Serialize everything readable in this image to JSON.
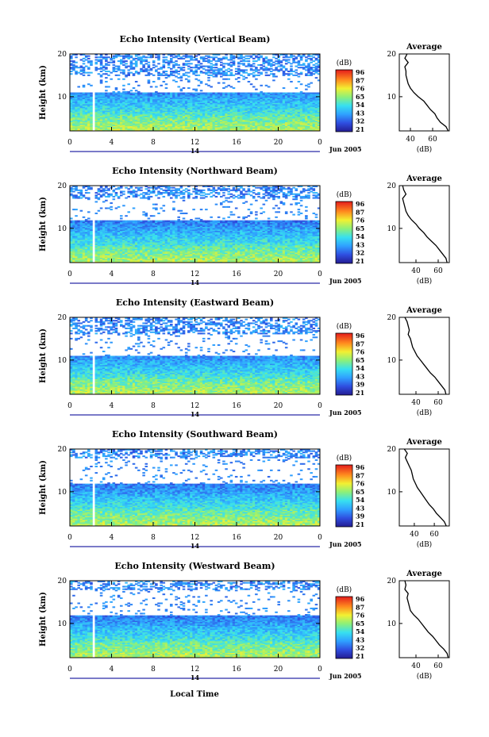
{
  "figure": {
    "xlabel": "Local Time",
    "date_label": "Jun 2005",
    "colorbar_label": "(dB)",
    "avg_title": "Average",
    "avg_xlabel": "(dB)"
  },
  "chart_data": [
    {
      "type": "heatmap",
      "title": "Echo Intensity (Vertical Beam)",
      "ylabel": "Height (km)",
      "xlabel": "",
      "x_ticks": [
        "0",
        "4",
        "8",
        "12",
        "16",
        "20",
        "0"
      ],
      "day_label": "14",
      "xlim": [
        0,
        24
      ],
      "ylim": [
        2,
        20
      ],
      "y_ticks": [
        "20",
        "10"
      ],
      "colorbar": {
        "ticks": [
          "96",
          "87",
          "76",
          "65",
          "54",
          "43",
          "32",
          "21"
        ],
        "range": [
          21,
          96
        ]
      },
      "profile_ycuts": {
        "upper_km": 15,
        "middle_km": 11,
        "lower_km": 6
      },
      "data_gap_x": 2.3,
      "average_profile": {
        "type": "line",
        "xlim": [
          30,
          75
        ],
        "x_ticks": [
          "40",
          "60"
        ],
        "y_ticks": [
          "20",
          "10"
        ],
        "height_km": [
          20,
          19,
          18,
          17,
          16,
          15,
          14,
          13,
          12,
          11,
          10,
          9,
          8,
          7,
          6,
          5,
          4,
          3,
          2
        ],
        "dB": [
          37,
          35,
          38,
          35,
          36,
          36,
          37,
          38,
          40,
          43,
          47,
          52,
          55,
          58,
          62,
          64,
          67,
          72,
          74
        ]
      }
    },
    {
      "type": "heatmap",
      "title": "Echo Intensity (Northward Beam)",
      "ylabel": "Height (km)",
      "xlabel": "",
      "x_ticks": [
        "0",
        "4",
        "8",
        "12",
        "16",
        "20",
        "0"
      ],
      "day_label": "14",
      "xlim": [
        0,
        24
      ],
      "ylim": [
        2,
        20
      ],
      "y_ticks": [
        "20",
        "10"
      ],
      "colorbar": {
        "ticks": [
          "96",
          "87",
          "76",
          "65",
          "54",
          "43",
          "32",
          "21"
        ],
        "range": [
          21,
          96
        ]
      },
      "profile_ycuts": {
        "upper_km": 17,
        "middle_km": 12,
        "lower_km": 6
      },
      "data_gap_x": 2.3,
      "average_profile": {
        "type": "line",
        "xlim": [
          25,
          70
        ],
        "x_ticks": [
          "40",
          "60"
        ],
        "y_ticks": [
          "20",
          "10"
        ],
        "height_km": [
          20,
          19,
          18,
          17,
          16,
          15,
          14,
          13,
          12,
          11,
          10,
          9,
          8,
          7,
          6,
          5,
          4,
          3,
          2
        ],
        "dB": [
          28,
          29,
          31,
          28,
          29,
          30,
          31,
          33,
          36,
          40,
          43,
          47,
          50,
          54,
          58,
          61,
          64,
          67,
          68
        ]
      }
    },
    {
      "type": "heatmap",
      "title": "Echo Intensity (Eastward Beam)",
      "ylabel": "Height (km)",
      "xlabel": "",
      "x_ticks": [
        "0",
        "4",
        "8",
        "12",
        "16",
        "20",
        "0"
      ],
      "day_label": "14",
      "xlim": [
        0,
        24
      ],
      "ylim": [
        2,
        20
      ],
      "y_ticks": [
        "20",
        "10"
      ],
      "colorbar": {
        "ticks": [
          "96",
          "87",
          "76",
          "65",
          "54",
          "43",
          "39",
          "21"
        ],
        "range": [
          21,
          96
        ]
      },
      "profile_ycuts": {
        "upper_km": 16,
        "middle_km": 11,
        "lower_km": 6
      },
      "data_gap_x": 2.3,
      "average_profile": {
        "type": "line",
        "xlim": [
          25,
          70
        ],
        "x_ticks": [
          "40",
          "60"
        ],
        "y_ticks": [
          "20",
          "10"
        ],
        "height_km": [
          20,
          19,
          18,
          17,
          16,
          15,
          14,
          13,
          12,
          11,
          10,
          9,
          8,
          7,
          6,
          5,
          4,
          3,
          2
        ],
        "dB": [
          30,
          32,
          33,
          34,
          33,
          35,
          36,
          37,
          39,
          41,
          44,
          47,
          50,
          53,
          57,
          60,
          63,
          66,
          67
        ]
      }
    },
    {
      "type": "heatmap",
      "title": "Echo Intensity (Southward Beam)",
      "ylabel": "Height (km)",
      "xlabel": "",
      "x_ticks": [
        "0",
        "4",
        "8",
        "12",
        "16",
        "20",
        "0"
      ],
      "day_label": "14",
      "xlim": [
        0,
        24
      ],
      "ylim": [
        2,
        20
      ],
      "y_ticks": [
        "20",
        "10"
      ],
      "colorbar": {
        "ticks": [
          "96",
          "87",
          "76",
          "65",
          "54",
          "43",
          "39",
          "21"
        ],
        "range": [
          21,
          96
        ]
      },
      "profile_ycuts": {
        "upper_km": 18,
        "middle_km": 12,
        "lower_km": 6
      },
      "data_gap_x": 2.3,
      "average_profile": {
        "type": "line",
        "xlim": [
          25,
          75
        ],
        "x_ticks": [
          "40",
          "60"
        ],
        "y_ticks": [
          "20",
          "10"
        ],
        "height_km": [
          20,
          19,
          18,
          17,
          16,
          15,
          14,
          13,
          12,
          11,
          10,
          9,
          8,
          7,
          6,
          5,
          4,
          3,
          2
        ],
        "dB": [
          30,
          33,
          31,
          33,
          35,
          37,
          38,
          39,
          41,
          43,
          46,
          49,
          52,
          55,
          59,
          62,
          66,
          70,
          72
        ]
      }
    },
    {
      "type": "heatmap",
      "title": "Echo Intensity (Westward Beam)",
      "ylabel": "Height (km)",
      "xlabel": "Local Time",
      "x_ticks": [
        "0",
        "4",
        "8",
        "12",
        "16",
        "20",
        "0"
      ],
      "day_label": "14",
      "xlim": [
        0,
        24
      ],
      "ylim": [
        2,
        20
      ],
      "y_ticks": [
        "20",
        "10"
      ],
      "colorbar": {
        "ticks": [
          "96",
          "87",
          "76",
          "65",
          "54",
          "43",
          "32",
          "21"
        ],
        "range": [
          21,
          96
        ]
      },
      "profile_ycuts": {
        "upper_km": 18,
        "middle_km": 12,
        "lower_km": 6
      },
      "data_gap_x": 2.3,
      "average_profile": {
        "type": "line",
        "xlim": [
          25,
          70
        ],
        "x_ticks": [
          "40",
          "60"
        ],
        "y_ticks": [
          "20",
          "10"
        ],
        "height_km": [
          20,
          19,
          18,
          17,
          16,
          15,
          14,
          13,
          12,
          11,
          10,
          9,
          8,
          7,
          6,
          5,
          4,
          3,
          2
        ],
        "dB": [
          30,
          31,
          30,
          33,
          32,
          33,
          34,
          35,
          38,
          42,
          45,
          48,
          51,
          55,
          58,
          61,
          65,
          68,
          69
        ]
      }
    }
  ]
}
